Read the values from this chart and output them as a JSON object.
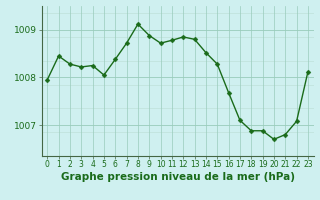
{
  "x": [
    0,
    1,
    2,
    3,
    4,
    5,
    6,
    7,
    8,
    9,
    10,
    11,
    12,
    13,
    14,
    15,
    16,
    17,
    18,
    19,
    20,
    21,
    22,
    23
  ],
  "y": [
    1007.95,
    1008.45,
    1008.28,
    1008.22,
    1008.25,
    1008.05,
    1008.38,
    1008.72,
    1009.12,
    1008.88,
    1008.72,
    1008.78,
    1008.85,
    1008.8,
    1008.52,
    1008.28,
    1007.68,
    1007.1,
    1006.88,
    1006.88,
    1006.7,
    1006.8,
    1007.08,
    1008.12
  ],
  "line_color": "#1a6b1a",
  "marker": "D",
  "marker_size": 2.5,
  "bg_color": "#cff0f0",
  "grid_color_major": "#99ccbb",
  "grid_color_minor": "#bbddd5",
  "xlabel": "Graphe pression niveau de la mer (hPa)",
  "xlabel_fontsize": 7.5,
  "yticks": [
    1007,
    1008,
    1009
  ],
  "ylim": [
    1006.35,
    1009.5
  ],
  "xlim": [
    -0.5,
    23.5
  ],
  "xtick_labels": [
    "0",
    "1",
    "2",
    "3",
    "4",
    "5",
    "6",
    "7",
    "8",
    "9",
    "10",
    "11",
    "12",
    "13",
    "14",
    "15",
    "16",
    "17",
    "18",
    "19",
    "20",
    "21",
    "22",
    "23"
  ],
  "ytick_fontsize": 6.5,
  "xtick_fontsize": 5.5,
  "line_width": 1.0,
  "spine_color": "#446644"
}
